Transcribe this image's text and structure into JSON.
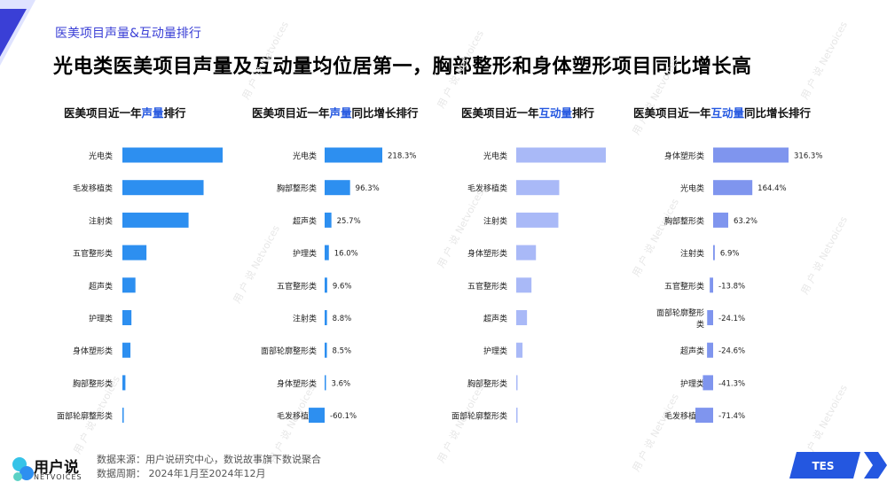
{
  "header": {
    "subtitle": "医美项目声量&互动量排行",
    "title": "光电类医美项目声量及互动量均位居第一，胸部整形和身体塑形项目同比增长高"
  },
  "panels": [
    {
      "title_pre": "医美项目近一年",
      "title_hl": "声量",
      "title_post": "排行"
    },
    {
      "title_pre": "医美项目近一年",
      "title_hl": "声量",
      "title_post": "同比增长排行"
    },
    {
      "title_pre": "医美项目近一年",
      "title_hl": "互动量",
      "title_post": "排行"
    },
    {
      "title_pre": "医美项目近一年",
      "title_hl": "互动量",
      "title_post": "同比增长排行"
    }
  ],
  "chart_data": [
    {
      "type": "bar",
      "orientation": "horizontal",
      "title": "医美项目近一年声量排行",
      "categories": [
        "光电类",
        "毛发移植类",
        "注射类",
        "五官整形类",
        "超声类",
        "护理类",
        "身体塑形类",
        "胸部整形类",
        "面部轮廓整形类"
      ],
      "values": [
        100,
        81,
        66,
        24,
        13,
        9,
        8,
        3,
        1
      ],
      "color": "#2d8ff0"
    },
    {
      "type": "bar",
      "orientation": "horizontal",
      "title": "医美项目近一年声量同比增长排行",
      "categories": [
        "光电类",
        "胸部整形类",
        "超声类",
        "护理类",
        "五官整形类",
        "注射类",
        "面部轮廓整形类",
        "身体塑形类",
        "毛发移植类"
      ],
      "values": [
        218.3,
        96.3,
        25.7,
        16.0,
        9.6,
        8.8,
        8.5,
        3.6,
        -60.1
      ],
      "labels": [
        "218.3%",
        "96.3%",
        "25.7%",
        "16.0%",
        "9.6%",
        "8.8%",
        "8.5%",
        "3.6%",
        "-60.1%"
      ],
      "color": "#2d8ff0"
    },
    {
      "type": "bar",
      "orientation": "horizontal",
      "title": "医美项目近一年互动量排行",
      "categories": [
        "光电类",
        "毛发移植类",
        "注射类",
        "身体塑形类",
        "五官整形类",
        "超声类",
        "护理类",
        "胸部整形类",
        "面部轮廓整形类"
      ],
      "values": [
        100,
        48,
        47,
        22,
        17,
        12,
        7,
        1,
        0.5
      ],
      "color": "#a9b9f7"
    },
    {
      "type": "bar",
      "orientation": "horizontal",
      "title": "医美项目近一年互动量同比增长排行",
      "categories": [
        "身体塑形类",
        "光电类",
        "胸部整形类",
        "注射类",
        "五官整形类",
        "面部轮廓整形类",
        "超声类",
        "护理类",
        "毛发移植类"
      ],
      "values": [
        316.3,
        164.4,
        63.2,
        6.9,
        -13.8,
        -24.1,
        -24.6,
        -41.3,
        -71.4
      ],
      "labels": [
        "316.3%",
        "164.4%",
        "63.2%",
        "6.9%",
        "-13.8%",
        "-24.1%",
        "-24.6%",
        "-41.3%",
        "-71.4%"
      ],
      "color": "#7f95ee"
    }
  ],
  "footer": {
    "logo_cn": "用户说",
    "logo_en": "NETVOICES",
    "source_line1": "数据来源：用户说研究中心，数说故事旗下数说聚合",
    "source_line2": "数据周期：  2024年1月至2024年12月",
    "badge": "TES"
  },
  "watermark": {
    "cn": "用 户 说",
    "en": "Netvoices"
  },
  "colors": {
    "accent": "#3a3fd6",
    "bar_blue": "#2d8ff0",
    "bar_light": "#a9b9f7",
    "bar_mid": "#7f95ee"
  }
}
